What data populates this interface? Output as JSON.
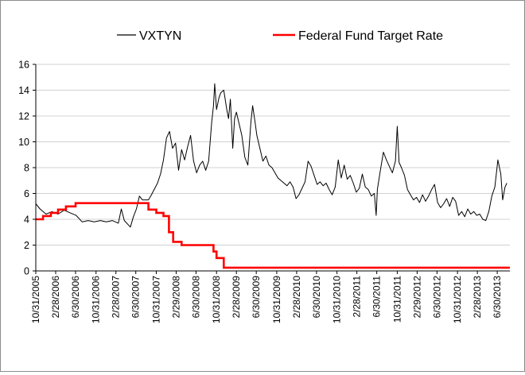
{
  "chart_data": {
    "type": "line",
    "title": "",
    "xlabel": "",
    "ylabel": "",
    "ylim": [
      0,
      16
    ],
    "yticks": [
      0,
      2,
      4,
      6,
      8,
      10,
      12,
      14,
      16
    ],
    "ytick_labels": [
      "0",
      "2",
      "4",
      "6",
      "8",
      "10",
      "12",
      "14",
      "16"
    ],
    "x_range": [
      2005.83,
      2013.7
    ],
    "x_ticks": [
      {
        "label": "10/31/2005",
        "t": 2005.83
      },
      {
        "label": "2/28/2006",
        "t": 2006.16
      },
      {
        "label": "6/30/2006",
        "t": 2006.49
      },
      {
        "label": "10/31/2006",
        "t": 2006.83
      },
      {
        "label": "2/28/2007",
        "t": 2007.16
      },
      {
        "label": "6/30/2007",
        "t": 2007.49
      },
      {
        "label": "10/31/2007",
        "t": 2007.83
      },
      {
        "label": "2/29/2008",
        "t": 2008.16
      },
      {
        "label": "6/30/2008",
        "t": 2008.49
      },
      {
        "label": "10/31/2008",
        "t": 2008.83
      },
      {
        "label": "2/28/2009",
        "t": 2009.16
      },
      {
        "label": "6/30/2009",
        "t": 2009.49
      },
      {
        "label": "10/31/2009",
        "t": 2009.83
      },
      {
        "label": "2/28/2010",
        "t": 2010.16
      },
      {
        "label": "6/30/2010",
        "t": 2010.49
      },
      {
        "label": "10/31/2010",
        "t": 2010.83
      },
      {
        "label": "2/28/2011",
        "t": 2011.16
      },
      {
        "label": "6/30/2011",
        "t": 2011.49
      },
      {
        "label": "10/31/2011",
        "t": 2011.83
      },
      {
        "label": "2/29/2012",
        "t": 2012.16
      },
      {
        "label": "6/30/2012",
        "t": 2012.49
      },
      {
        "label": "10/31/2012",
        "t": 2012.83
      },
      {
        "label": "2/28/2013",
        "t": 2013.16
      },
      {
        "label": "6/30/2013",
        "t": 2013.49
      }
    ],
    "legend": {
      "position": "top"
    },
    "series": [
      {
        "name": "VXTYN",
        "color": "#000000",
        "style": "line-thin",
        "points": [
          [
            2005.83,
            5.2
          ],
          [
            2005.9,
            4.8
          ],
          [
            2006.0,
            4.4
          ],
          [
            2006.1,
            4.6
          ],
          [
            2006.2,
            4.4
          ],
          [
            2006.3,
            4.7
          ],
          [
            2006.4,
            4.5
          ],
          [
            2006.5,
            4.3
          ],
          [
            2006.6,
            3.8
          ],
          [
            2006.7,
            3.9
          ],
          [
            2006.8,
            3.8
          ],
          [
            2006.9,
            3.9
          ],
          [
            2007.0,
            3.8
          ],
          [
            2007.1,
            3.9
          ],
          [
            2007.2,
            3.7
          ],
          [
            2007.25,
            4.8
          ],
          [
            2007.3,
            3.9
          ],
          [
            2007.4,
            3.4
          ],
          [
            2007.45,
            4.2
          ],
          [
            2007.5,
            4.8
          ],
          [
            2007.55,
            5.8
          ],
          [
            2007.6,
            5.5
          ],
          [
            2007.7,
            5.5
          ],
          [
            2007.75,
            5.9
          ],
          [
            2007.85,
            6.8
          ],
          [
            2007.9,
            7.5
          ],
          [
            2007.95,
            8.6
          ],
          [
            2008.0,
            10.3
          ],
          [
            2008.05,
            10.8
          ],
          [
            2008.1,
            9.5
          ],
          [
            2008.15,
            9.9
          ],
          [
            2008.2,
            7.8
          ],
          [
            2008.25,
            9.4
          ],
          [
            2008.3,
            8.6
          ],
          [
            2008.35,
            9.6
          ],
          [
            2008.4,
            10.5
          ],
          [
            2008.45,
            8.5
          ],
          [
            2008.5,
            7.6
          ],
          [
            2008.55,
            8.2
          ],
          [
            2008.6,
            8.5
          ],
          [
            2008.65,
            7.8
          ],
          [
            2008.7,
            8.5
          ],
          [
            2008.75,
            11.5
          ],
          [
            2008.78,
            12.8
          ],
          [
            2008.8,
            14.5
          ],
          [
            2008.83,
            12.5
          ],
          [
            2008.87,
            13.4
          ],
          [
            2008.9,
            13.8
          ],
          [
            2008.95,
            14.0
          ],
          [
            2009.0,
            12.5
          ],
          [
            2009.03,
            11.8
          ],
          [
            2009.06,
            13.3
          ],
          [
            2009.1,
            9.5
          ],
          [
            2009.13,
            11.8
          ],
          [
            2009.16,
            12.3
          ],
          [
            2009.2,
            11.5
          ],
          [
            2009.25,
            10.5
          ],
          [
            2009.3,
            8.8
          ],
          [
            2009.35,
            8.2
          ],
          [
            2009.4,
            11.5
          ],
          [
            2009.43,
            12.8
          ],
          [
            2009.47,
            11.5
          ],
          [
            2009.5,
            10.5
          ],
          [
            2009.55,
            9.5
          ],
          [
            2009.6,
            8.5
          ],
          [
            2009.65,
            8.9
          ],
          [
            2009.7,
            8.2
          ],
          [
            2009.75,
            8.0
          ],
          [
            2009.8,
            7.6
          ],
          [
            2009.85,
            7.2
          ],
          [
            2009.9,
            7.0
          ],
          [
            2009.95,
            6.8
          ],
          [
            2010.0,
            6.6
          ],
          [
            2010.05,
            6.9
          ],
          [
            2010.1,
            6.5
          ],
          [
            2010.15,
            5.6
          ],
          [
            2010.2,
            5.9
          ],
          [
            2010.25,
            6.4
          ],
          [
            2010.3,
            6.9
          ],
          [
            2010.35,
            8.5
          ],
          [
            2010.4,
            8.1
          ],
          [
            2010.45,
            7.4
          ],
          [
            2010.5,
            6.7
          ],
          [
            2010.55,
            6.9
          ],
          [
            2010.6,
            6.6
          ],
          [
            2010.65,
            6.8
          ],
          [
            2010.7,
            6.3
          ],
          [
            2010.75,
            5.9
          ],
          [
            2010.8,
            6.5
          ],
          [
            2010.85,
            8.6
          ],
          [
            2010.9,
            7.2
          ],
          [
            2010.95,
            8.2
          ],
          [
            2011.0,
            7.1
          ],
          [
            2011.05,
            7.4
          ],
          [
            2011.1,
            6.8
          ],
          [
            2011.15,
            6.1
          ],
          [
            2011.2,
            6.4
          ],
          [
            2011.25,
            7.5
          ],
          [
            2011.3,
            6.5
          ],
          [
            2011.35,
            6.3
          ],
          [
            2011.4,
            5.8
          ],
          [
            2011.45,
            6.0
          ],
          [
            2011.48,
            4.3
          ],
          [
            2011.5,
            6.3
          ],
          [
            2011.55,
            7.8
          ],
          [
            2011.6,
            9.2
          ],
          [
            2011.65,
            8.6
          ],
          [
            2011.7,
            8.1
          ],
          [
            2011.75,
            7.6
          ],
          [
            2011.8,
            8.5
          ],
          [
            2011.83,
            11.2
          ],
          [
            2011.86,
            8.4
          ],
          [
            2011.9,
            8.0
          ],
          [
            2011.95,
            7.4
          ],
          [
            2012.0,
            6.3
          ],
          [
            2012.05,
            5.9
          ],
          [
            2012.1,
            5.5
          ],
          [
            2012.15,
            5.7
          ],
          [
            2012.2,
            5.3
          ],
          [
            2012.25,
            5.9
          ],
          [
            2012.3,
            5.4
          ],
          [
            2012.35,
            5.8
          ],
          [
            2012.4,
            6.3
          ],
          [
            2012.45,
            6.7
          ],
          [
            2012.5,
            5.3
          ],
          [
            2012.55,
            4.9
          ],
          [
            2012.6,
            5.2
          ],
          [
            2012.65,
            5.6
          ],
          [
            2012.7,
            5.0
          ],
          [
            2012.75,
            5.7
          ],
          [
            2012.8,
            5.4
          ],
          [
            2012.85,
            4.3
          ],
          [
            2012.9,
            4.6
          ],
          [
            2012.95,
            4.2
          ],
          [
            2013.0,
            4.8
          ],
          [
            2013.05,
            4.4
          ],
          [
            2013.1,
            4.6
          ],
          [
            2013.15,
            4.3
          ],
          [
            2013.2,
            4.4
          ],
          [
            2013.25,
            4.0
          ],
          [
            2013.3,
            3.9
          ],
          [
            2013.35,
            4.6
          ],
          [
            2013.4,
            5.8
          ],
          [
            2013.45,
            6.5
          ],
          [
            2013.5,
            8.6
          ],
          [
            2013.55,
            7.5
          ],
          [
            2013.58,
            5.5
          ],
          [
            2013.62,
            6.5
          ],
          [
            2013.65,
            6.8
          ]
        ]
      },
      {
        "name": "Federal Fund Target Rate",
        "color": "#ff0000",
        "style": "step-thick",
        "points": [
          [
            2005.83,
            4.0
          ],
          [
            2005.95,
            4.25
          ],
          [
            2006.08,
            4.5
          ],
          [
            2006.2,
            4.75
          ],
          [
            2006.33,
            5.0
          ],
          [
            2006.49,
            5.25
          ],
          [
            2007.7,
            4.75
          ],
          [
            2007.83,
            4.5
          ],
          [
            2007.95,
            4.25
          ],
          [
            2008.04,
            3.0
          ],
          [
            2008.11,
            2.25
          ],
          [
            2008.25,
            2.0
          ],
          [
            2008.78,
            1.5
          ],
          [
            2008.83,
            1.0
          ],
          [
            2008.95,
            0.25
          ],
          [
            2013.7,
            0.25
          ]
        ]
      }
    ]
  }
}
